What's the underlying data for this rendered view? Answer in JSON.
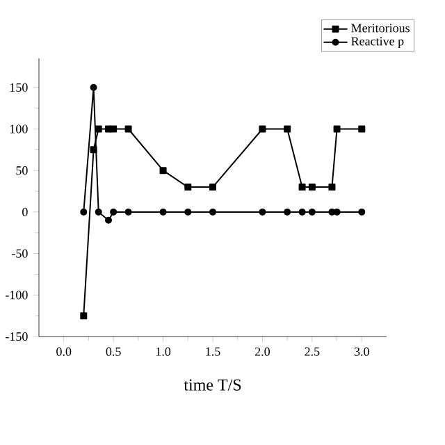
{
  "chart_data": {
    "type": "line",
    "xlabel": "time T/S",
    "xlim": [
      -0.25,
      3.25
    ],
    "xticks": [
      {
        "value": 0,
        "label": "0.0"
      },
      {
        "value": 0.5,
        "label": "0.5"
      },
      {
        "value": 1,
        "label": "1.0"
      },
      {
        "value": 1.5,
        "label": "1.5"
      },
      {
        "value": 2,
        "label": "2.0"
      },
      {
        "value": 2.5,
        "label": "2.5"
      },
      {
        "value": 3,
        "label": "3.0"
      }
    ],
    "ylim": [
      -150,
      185
    ],
    "yticks": [
      -150,
      -100,
      -50,
      0,
      50,
      100,
      150
    ],
    "legend": "top right",
    "grid": false,
    "line_style": "solid",
    "series": [
      {
        "name": "Meritorious",
        "color": "#000000",
        "marker": "square",
        "x": [
          0.2,
          0.3,
          0.35,
          0.45,
          0.5,
          0.65,
          1.0,
          1.25,
          1.5,
          2.0,
          2.25,
          2.4,
          2.5,
          2.7,
          2.75,
          3.0
        ],
        "values": [
          -125,
          75,
          100,
          100,
          100,
          100,
          50,
          30,
          30,
          100,
          100,
          30,
          30,
          30,
          100,
          100
        ]
      },
      {
        "name": "Reactive p",
        "color": "#000000",
        "marker": "circle",
        "x": [
          0.2,
          0.3,
          0.35,
          0.45,
          0.5,
          0.65,
          1.0,
          1.25,
          1.5,
          2.0,
          2.25,
          2.4,
          2.5,
          2.7,
          2.75,
          3.0
        ],
        "values": [
          0,
          150,
          0,
          -10,
          0,
          0,
          0,
          0,
          0,
          0,
          0,
          0,
          0,
          0,
          0,
          0
        ]
      }
    ]
  }
}
